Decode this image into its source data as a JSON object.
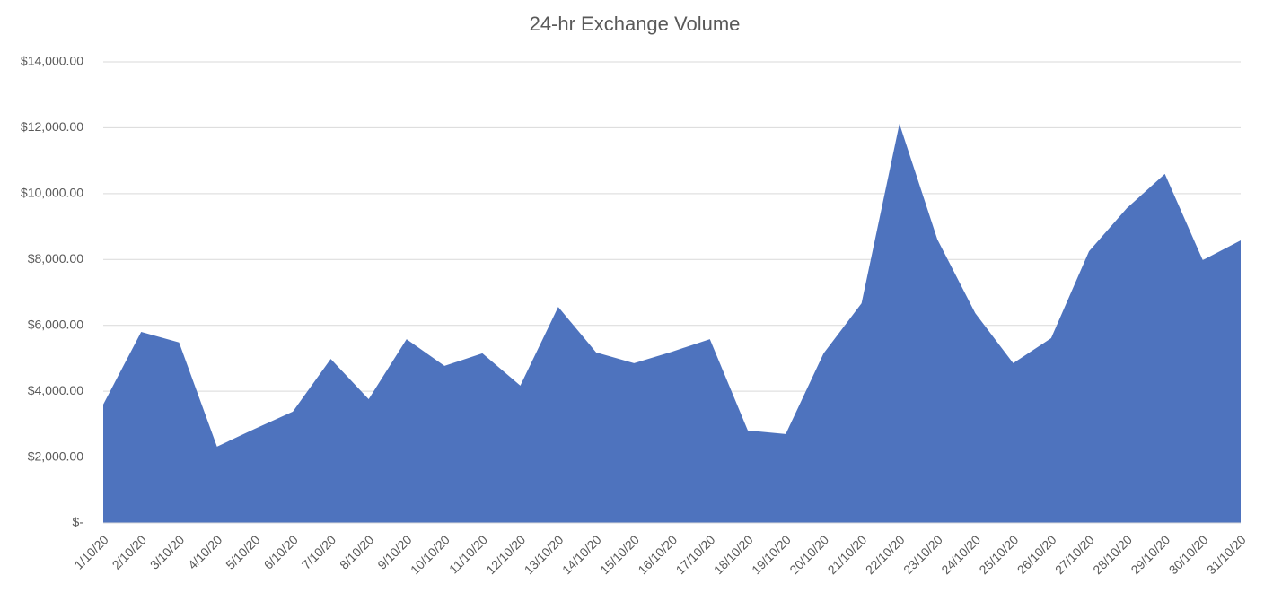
{
  "chart_data": {
    "type": "area",
    "title": "24-hr Exchange Volume",
    "categories": [
      "1/10/20",
      "2/10/20",
      "3/10/20",
      "4/10/20",
      "5/10/20",
      "6/10/20",
      "7/10/20",
      "8/10/20",
      "9/10/20",
      "10/10/20",
      "11/10/20",
      "12/10/20",
      "13/10/20",
      "14/10/20",
      "15/10/20",
      "16/10/20",
      "17/10/20",
      "18/10/20",
      "19/10/20",
      "20/10/20",
      "21/10/20",
      "22/10/20",
      "23/10/20",
      "24/10/20",
      "25/10/20",
      "26/10/20",
      "27/10/20",
      "28/10/20",
      "29/10/20",
      "30/10/20",
      "31/10/20"
    ],
    "values": [
      3600,
      5800,
      5480,
      2320,
      2860,
      3380,
      4980,
      3760,
      5580,
      4770,
      5150,
      4170,
      6560,
      5180,
      4850,
      5200,
      5580,
      2810,
      2700,
      5150,
      6670,
      12120,
      8610,
      6370,
      4850,
      5610,
      8250,
      9560,
      10600,
      7980,
      8580
    ],
    "color": "#4e73be",
    "ylim": [
      0,
      14000
    ],
    "yticks": [
      {
        "value": 0,
        "label": "$-"
      },
      {
        "value": 2000,
        "label": "$2,000.00"
      },
      {
        "value": 4000,
        "label": "$4,000.00"
      },
      {
        "value": 6000,
        "label": "$6,000.00"
      },
      {
        "value": 8000,
        "label": "$8,000.00"
      },
      {
        "value": 10000,
        "label": "$10,000.00"
      },
      {
        "value": 12000,
        "label": "$12,000.00"
      },
      {
        "value": 14000,
        "label": "$14,000.00"
      }
    ],
    "grid": true
  }
}
